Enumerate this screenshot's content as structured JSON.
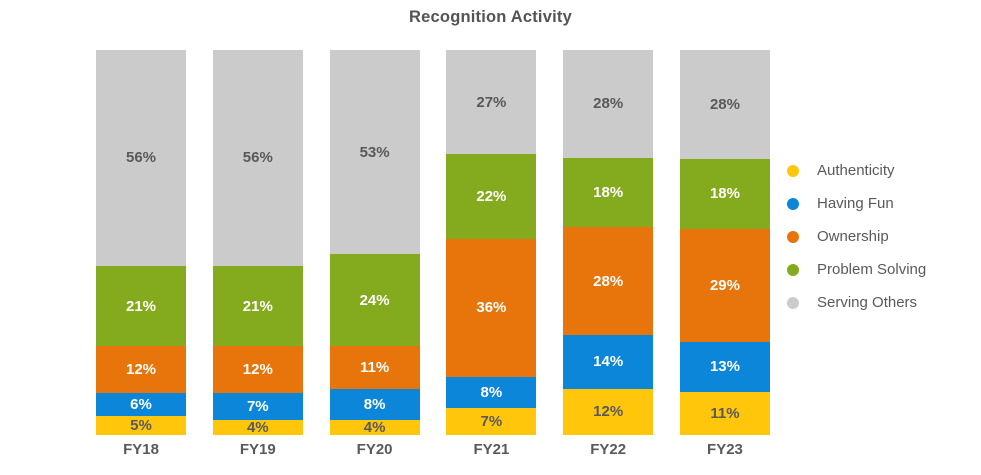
{
  "title": "Recognition Activity",
  "chart_data": {
    "type": "bar",
    "variant": "stacked-column",
    "title": "Recognition Activity",
    "categories": [
      "FY18",
      "FY19",
      "FY20",
      "FY21",
      "FY22",
      "FY23"
    ],
    "series": [
      {
        "name": "Authenticity",
        "color": "#FFC60B",
        "label_color": "#595959",
        "values": [
          5,
          4,
          4,
          7,
          12,
          11
        ]
      },
      {
        "name": "Having Fun",
        "color": "#0B86D8",
        "label_color": "#FFFFFF",
        "values": [
          6,
          7,
          8,
          8,
          14,
          13
        ]
      },
      {
        "name": "Ownership",
        "color": "#E8750C",
        "label_color": "#FFFFFF",
        "values": [
          12,
          12,
          11,
          36,
          28,
          29
        ]
      },
      {
        "name": "Problem Solving",
        "color": "#84AB1D",
        "label_color": "#FFFFFF",
        "values": [
          21,
          21,
          24,
          22,
          18,
          18
        ]
      },
      {
        "name": "Serving Others",
        "color": "#CBCBCB",
        "label_color": "#595959",
        "values": [
          56,
          56,
          53,
          27,
          28,
          28
        ]
      }
    ],
    "value_suffix": "%",
    "stack_order": "bottom-to-top",
    "legend_position": "right",
    "grid": false,
    "axis_labels_color": "#595959",
    "ylim": [
      0,
      100
    ]
  }
}
